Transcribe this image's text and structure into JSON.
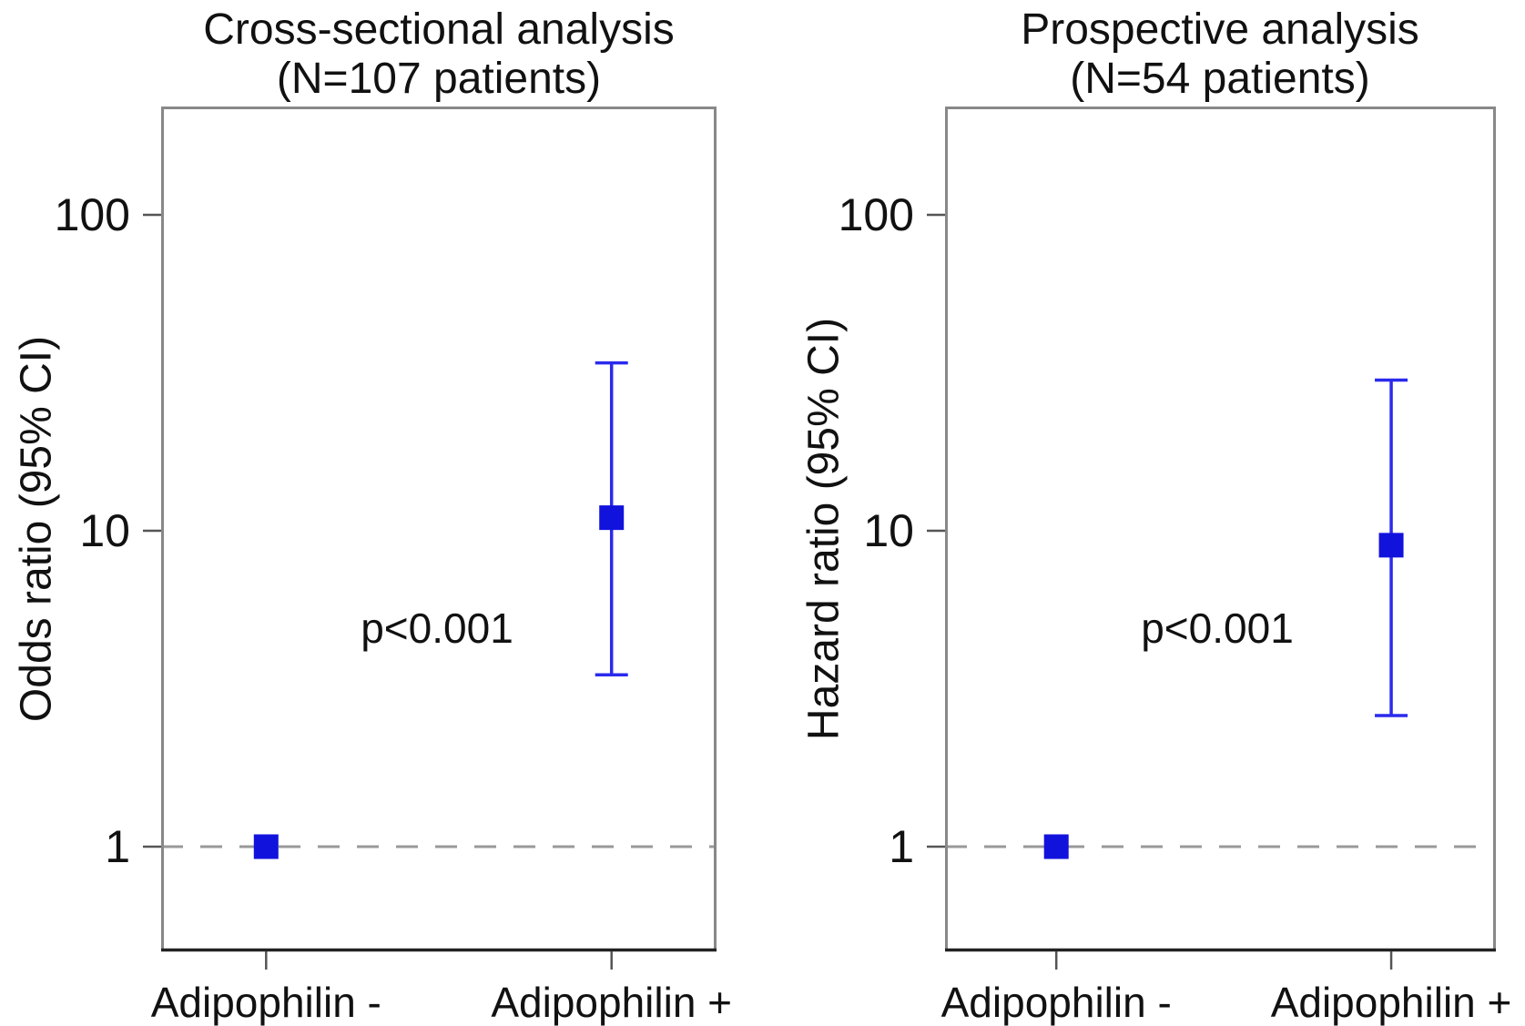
{
  "chart_data": [
    {
      "type": "scatter",
      "subtype": "forest-errorbar",
      "title": "Cross-sectional analysis",
      "subtitle": "(N=107 patients)",
      "ylabel": "Odds ratio (95% CI)",
      "xlabel": "",
      "scale": "log10",
      "yticks": [
        1,
        10,
        100
      ],
      "ylim": [
        0.47,
        220
      ],
      "reference_line": 1,
      "grid": false,
      "legend": "none",
      "categories": [
        "Adipophilin -",
        "Adipophilin +"
      ],
      "points": [
        {
          "category": "Adipophilin -",
          "value": 1,
          "ci_low": null,
          "ci_high": null,
          "note": "reference"
        },
        {
          "category": "Adipophilin +",
          "value": 11,
          "ci_low": 3.5,
          "ci_high": 34
        }
      ],
      "annotation": "p<0.001"
    },
    {
      "type": "scatter",
      "subtype": "forest-errorbar",
      "title": "Prospective analysis",
      "subtitle": "(N=54 patients)",
      "ylabel": "Hazard ratio (95% CI)",
      "xlabel": "",
      "scale": "log10",
      "yticks": [
        1,
        10,
        100
      ],
      "ylim": [
        0.47,
        220
      ],
      "reference_line": 1,
      "grid": false,
      "legend": "none",
      "categories": [
        "Adipophilin -",
        "Adipophilin +"
      ],
      "points": [
        {
          "category": "Adipophilin -",
          "value": 1,
          "ci_low": null,
          "ci_high": null,
          "note": "reference"
        },
        {
          "category": "Adipophilin +",
          "value": 9,
          "ci_low": 2.6,
          "ci_high": 30
        }
      ],
      "annotation": "p<0.001"
    }
  ],
  "style": {
    "marker_color": "#1212dd",
    "error_bar_color": "#2a2aee",
    "reference_line_color": "#999999",
    "axis_box_color": "#888888",
    "axis_bottom_color": "#222222",
    "tick_color": "#555555",
    "text_color": "#111111",
    "background": "#ffffff"
  }
}
